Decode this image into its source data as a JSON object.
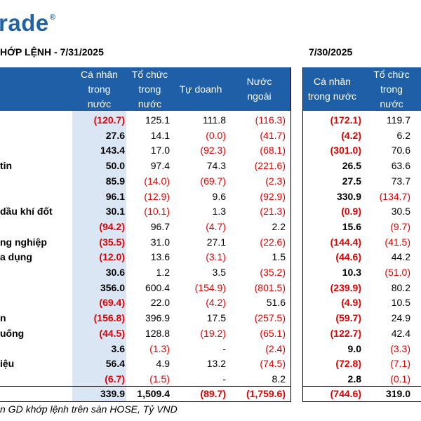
{
  "logo": {
    "text": "rade",
    "mark": "®"
  },
  "titles": {
    "left": "HỚP LỆNH - 7/31/2025",
    "right": "7/30/2025"
  },
  "headers_left": [
    "Cá nhân\ntrong\nnước",
    "Tổ chức\ntrong\nnước",
    "Tự doanh",
    "Nước\nngoài"
  ],
  "headers_right": [
    "Cá nhân\ntrong nước",
    "Tổ chức\ntrong\nnước"
  ],
  "rows": [
    {
      "label": "",
      "v": [
        "(120.7)",
        "125.1",
        "111.8",
        "(116.3)",
        "(172.1)",
        "119.7"
      ]
    },
    {
      "label": "",
      "v": [
        "27.6",
        "14.1",
        "(0.0)",
        "(41.7)",
        "(4.2)",
        "6.2"
      ]
    },
    {
      "label": "",
      "v": [
        "143.4",
        "17.0",
        "(92.3)",
        "(68.1)",
        "(301.0)",
        "70.6"
      ]
    },
    {
      "label": "tin",
      "v": [
        "50.0",
        "97.4",
        "74.3",
        "(221.6)",
        "26.5",
        "63.6"
      ]
    },
    {
      "label": "",
      "v": [
        "85.9",
        "(14.0)",
        "(69.7)",
        "(2.3)",
        "27.5",
        "73.7"
      ]
    },
    {
      "label": "",
      "v": [
        "96.1",
        "(12.9)",
        "9.6",
        "(92.9)",
        "330.9",
        "(134.7)"
      ]
    },
    {
      "label": " dầu khí đốt",
      "v": [
        "30.1",
        "(10.1)",
        "1.3",
        "(21.3)",
        "(0.9)",
        "30.5"
      ]
    },
    {
      "label": "",
      "v": [
        "(94.2)",
        "96.7",
        "(4.7)",
        "2.2",
        "15.6",
        "(9.7)"
      ]
    },
    {
      "label": "ng nghiệp",
      "v": [
        "(35.5)",
        "31.0",
        "27.1",
        "(22.6)",
        "(144.4)",
        "(41.5)"
      ]
    },
    {
      "label": "a dụng",
      "v": [
        "(12.0)",
        "13.6",
        "(3.1)",
        "1.5",
        "(44.6)",
        "44.2"
      ]
    },
    {
      "label": "",
      "v": [
        "30.6",
        "1.2",
        "3.5",
        "(35.2)",
        "10.3",
        "(51.0)"
      ]
    },
    {
      "label": "",
      "v": [
        "356.0",
        "600.4",
        "(154.9)",
        "(801.5)",
        "(239.9)",
        "80.2"
      ]
    },
    {
      "label": "",
      "v": [
        "(69.4)",
        "22.0",
        "(4.2)",
        "51.6",
        "(4.9)",
        "10.5"
      ]
    },
    {
      "label": "n",
      "v": [
        "(156.8)",
        "396.9",
        "17.5",
        "(257.5)",
        "(59.7)",
        "24.9"
      ]
    },
    {
      "label": "uống",
      "v": [
        "(44.5)",
        "128.8",
        "(19.2)",
        "(65.1)",
        "(122.7)",
        "42.4"
      ]
    },
    {
      "label": "",
      "v": [
        "3.6",
        "(1.3)",
        "-",
        "(2.4)",
        "9.0",
        "(3.3)"
      ]
    },
    {
      "label": "iệu",
      "v": [
        "56.4",
        "4.9",
        "13.2",
        "(74.5)",
        "(72.8)",
        "(7.1)"
      ]
    },
    {
      "label": "",
      "v": [
        "(6.7)",
        "(1.5)",
        "-",
        "8.2",
        "2.8",
        "(0.1)"
      ]
    }
  ],
  "total": {
    "v": [
      "339.9",
      "1,509.4",
      "(89.7)",
      "(1,759.6)",
      "(744.6)",
      "319.0"
    ]
  },
  "footnote": "n GD khớp lệnh trên sàn HOSE, Tỷ VND",
  "colors": {
    "header_bg": "#1f5fa8",
    "highlight": "#dbe6f4",
    "negative": "#e00000",
    "logo": "#1f63a8"
  }
}
